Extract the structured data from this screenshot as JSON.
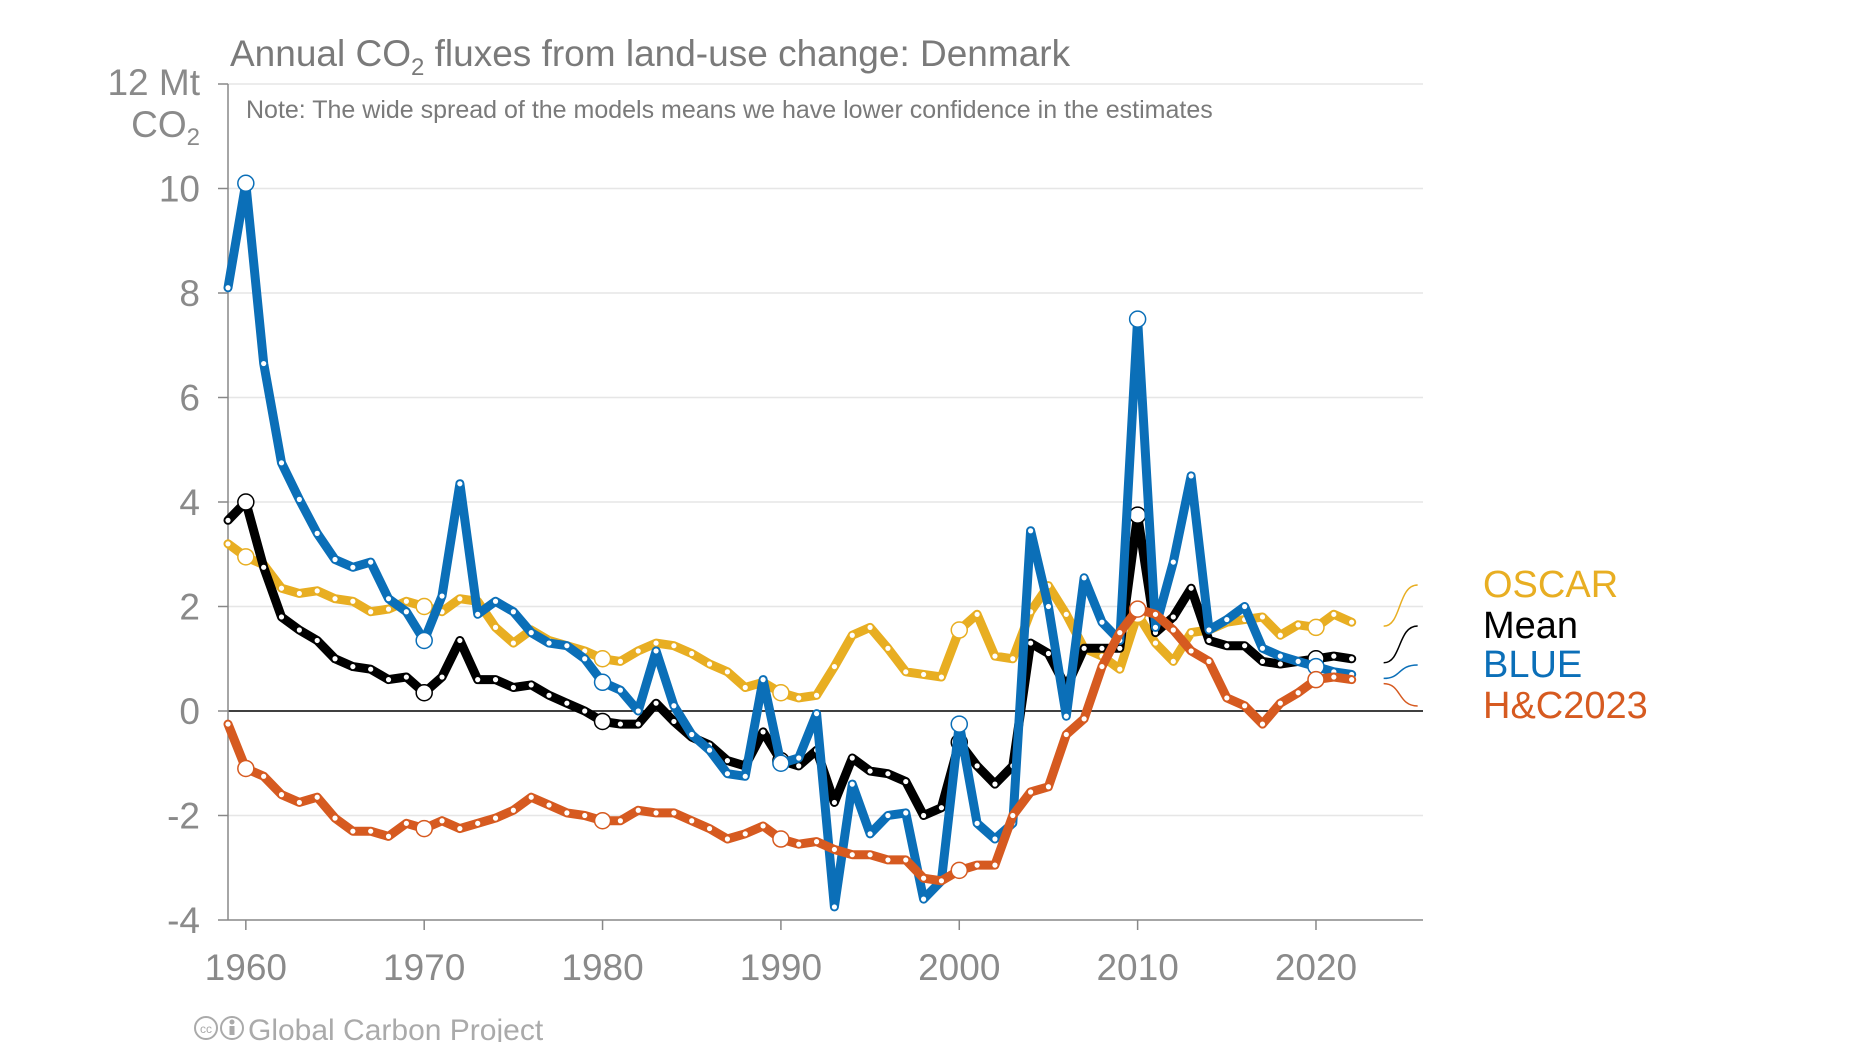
{
  "chart_data": {
    "type": "line",
    "title_prefix": "Annual CO",
    "title_sub": "2",
    "title_suffix": " fluxes from land-use change: Denmark",
    "note": "Note: The wide spread of the models means we have lower confidence in the estimates",
    "ylabel_line1": "12 Mt",
    "ylabel_line2_prefix": "CO",
    "ylabel_line2_sub": "2",
    "ylim": [
      -4,
      12
    ],
    "xlim": [
      1959,
      2026
    ],
    "y_ticks": [
      {
        "value": -4,
        "label": "-4"
      },
      {
        "value": -2,
        "label": "-2"
      },
      {
        "value": 0,
        "label": "0"
      },
      {
        "value": 2,
        "label": "2"
      },
      {
        "value": 4,
        "label": "4"
      },
      {
        "value": 6,
        "label": "6"
      },
      {
        "value": 8,
        "label": "8"
      },
      {
        "value": 10,
        "label": "10"
      }
    ],
    "x_ticks": [
      {
        "value": 1960,
        "label": "1960"
      },
      {
        "value": 1970,
        "label": "1970"
      },
      {
        "value": 1980,
        "label": "1980"
      },
      {
        "value": 1990,
        "label": "1990"
      },
      {
        "value": 2000,
        "label": "2000"
      },
      {
        "value": 2010,
        "label": "2010"
      },
      {
        "value": 2020,
        "label": "2020"
      }
    ],
    "grid": true,
    "legend_position": "right",
    "credit": "Global Carbon Project",
    "x": [
      1959,
      1960,
      1961,
      1962,
      1963,
      1964,
      1965,
      1966,
      1967,
      1968,
      1969,
      1970,
      1971,
      1972,
      1973,
      1974,
      1975,
      1976,
      1977,
      1978,
      1979,
      1980,
      1981,
      1982,
      1983,
      1984,
      1985,
      1986,
      1987,
      1988,
      1989,
      1990,
      1991,
      1992,
      1993,
      1994,
      1995,
      1996,
      1997,
      1998,
      1999,
      2000,
      2001,
      2002,
      2003,
      2004,
      2005,
      2006,
      2007,
      2008,
      2009,
      2010,
      2011,
      2012,
      2013,
      2014,
      2015,
      2016,
      2017,
      2018,
      2019,
      2020,
      2021,
      2022
    ],
    "series": [
      {
        "name": "OSCAR",
        "color": "#E8AE22",
        "values": [
          3.2,
          2.95,
          2.8,
          2.35,
          2.25,
          2.3,
          2.15,
          2.1,
          1.9,
          1.95,
          2.1,
          2.0,
          1.9,
          2.15,
          2.1,
          1.6,
          1.3,
          1.55,
          1.35,
          1.25,
          1.15,
          1.0,
          0.95,
          1.15,
          1.3,
          1.25,
          1.1,
          0.9,
          0.75,
          0.45,
          0.55,
          0.35,
          0.25,
          0.3,
          0.85,
          1.45,
          1.6,
          1.2,
          0.75,
          0.7,
          0.65,
          1.55,
          1.85,
          1.05,
          1.0,
          1.9,
          2.4,
          1.85,
          1.2,
          1.05,
          0.8,
          1.85,
          1.3,
          0.95,
          1.5,
          1.55,
          1.7,
          1.75,
          1.8,
          1.45,
          1.65,
          1.6,
          1.85,
          1.7
        ]
      },
      {
        "name": "Mean",
        "color": "#000000",
        "values": [
          3.65,
          4.0,
          2.75,
          1.8,
          1.55,
          1.35,
          1.0,
          0.85,
          0.8,
          0.6,
          0.65,
          0.35,
          0.65,
          1.35,
          0.6,
          0.6,
          0.45,
          0.5,
          0.3,
          0.15,
          0.0,
          -0.2,
          -0.25,
          -0.25,
          0.15,
          -0.2,
          -0.5,
          -0.65,
          -0.95,
          -1.05,
          -0.4,
          -0.95,
          -1.05,
          -0.75,
          -1.75,
          -0.9,
          -1.15,
          -1.2,
          -1.35,
          -2.0,
          -1.85,
          -0.6,
          -1.05,
          -1.4,
          -1.05,
          1.3,
          1.1,
          0.45,
          1.2,
          1.2,
          1.2,
          3.75,
          1.5,
          1.8,
          2.35,
          1.35,
          1.25,
          1.25,
          0.95,
          0.9,
          0.95,
          1.0,
          1.05,
          1.0
        ]
      },
      {
        "name": "BLUE",
        "color": "#0B6FB8",
        "values": [
          8.1,
          10.1,
          6.65,
          4.75,
          4.05,
          3.4,
          2.9,
          2.75,
          2.85,
          2.15,
          1.9,
          1.35,
          2.2,
          4.35,
          1.85,
          2.1,
          1.9,
          1.5,
          1.3,
          1.25,
          1.0,
          0.55,
          0.4,
          0.0,
          1.15,
          0.1,
          -0.45,
          -0.75,
          -1.2,
          -1.25,
          0.6,
          -1.0,
          -0.9,
          -0.05,
          -3.75,
          -1.4,
          -2.35,
          -2.0,
          -1.95,
          -3.6,
          -3.25,
          -0.25,
          -2.15,
          -2.45,
          -2.15,
          3.45,
          2.0,
          -0.1,
          2.55,
          1.7,
          1.35,
          7.5,
          1.6,
          2.85,
          4.5,
          1.55,
          1.75,
          2.0,
          1.2,
          1.05,
          0.95,
          0.85,
          0.75,
          0.7
        ]
      },
      {
        "name": "H&C2023",
        "color": "#D65A20",
        "values": [
          -0.25,
          -1.1,
          -1.25,
          -1.6,
          -1.75,
          -1.65,
          -2.05,
          -2.3,
          -2.3,
          -2.4,
          -2.15,
          -2.25,
          -2.1,
          -2.25,
          -2.15,
          -2.05,
          -1.9,
          -1.65,
          -1.8,
          -1.95,
          -2.0,
          -2.1,
          -2.1,
          -1.9,
          -1.95,
          -1.95,
          -2.1,
          -2.25,
          -2.45,
          -2.35,
          -2.2,
          -2.45,
          -2.55,
          -2.5,
          -2.65,
          -2.75,
          -2.75,
          -2.85,
          -2.85,
          -3.2,
          -3.25,
          -3.05,
          -2.95,
          -2.95,
          -2.0,
          -1.55,
          -1.45,
          -0.45,
          -0.15,
          0.85,
          1.5,
          1.95,
          1.85,
          1.55,
          1.15,
          0.95,
          0.25,
          0.1,
          -0.25,
          0.15,
          0.35,
          0.6,
          0.65,
          0.6
        ]
      }
    ],
    "highlight_years": [
      1960,
      1970,
      1980,
      1990,
      2000,
      2010,
      2020
    ]
  }
}
